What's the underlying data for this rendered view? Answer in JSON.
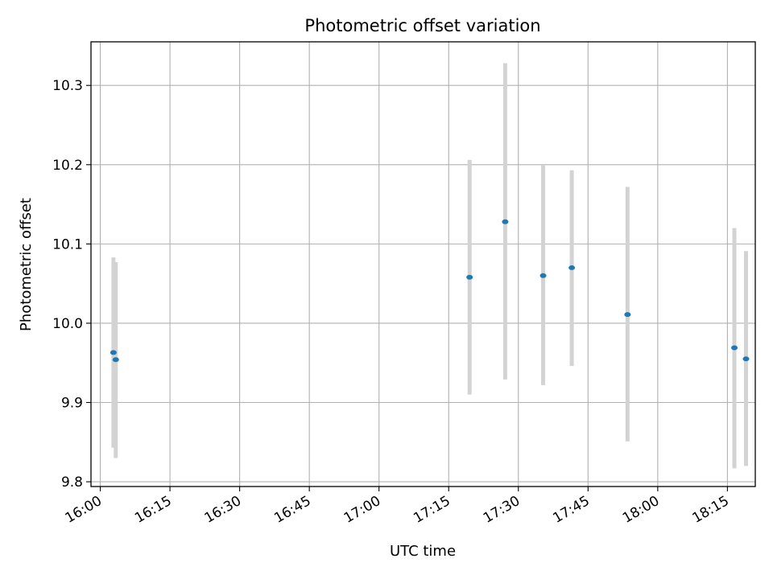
{
  "chart_data": {
    "type": "scatter",
    "title": "Photometric offset variation",
    "xlabel": "UTC time",
    "ylabel": "Photometric offset",
    "xlim": [
      "15:58",
      "18:21"
    ],
    "ylim": [
      9.794,
      10.355
    ],
    "grid": true,
    "x_ticks": [
      "16:00",
      "16:15",
      "16:30",
      "16:45",
      "17:00",
      "17:15",
      "17:30",
      "17:45",
      "18:00",
      "18:15"
    ],
    "y_ticks": [
      9.8,
      9.9,
      10.0,
      10.1,
      10.2,
      10.3
    ],
    "y_tick_labels": [
      "9.8",
      "9.9",
      "10.0",
      "10.1",
      "10.2",
      "10.3"
    ],
    "series": [
      {
        "marker_color": "#1f77b4",
        "errorbar_color": "#d3d3d3",
        "points": [
          {
            "x": "16:02:50",
            "y": 9.963,
            "ymin": 9.843,
            "ymax": 10.083
          },
          {
            "x": "16:03:20",
            "y": 9.954,
            "ymin": 9.83,
            "ymax": 10.077
          },
          {
            "x": "17:19:30",
            "y": 10.058,
            "ymin": 9.91,
            "ymax": 10.206
          },
          {
            "x": "17:27:10",
            "y": 10.128,
            "ymin": 9.929,
            "ymax": 10.328
          },
          {
            "x": "17:35:20",
            "y": 10.06,
            "ymin": 9.922,
            "ymax": 10.199
          },
          {
            "x": "17:41:30",
            "y": 10.07,
            "ymin": 9.946,
            "ymax": 10.193
          },
          {
            "x": "17:53:30",
            "y": 10.011,
            "ymin": 9.851,
            "ymax": 10.172
          },
          {
            "x": "18:16:30",
            "y": 9.969,
            "ymin": 9.817,
            "ymax": 10.12
          },
          {
            "x": "18:19:00",
            "y": 9.955,
            "ymin": 9.82,
            "ymax": 10.091
          }
        ]
      }
    ]
  }
}
